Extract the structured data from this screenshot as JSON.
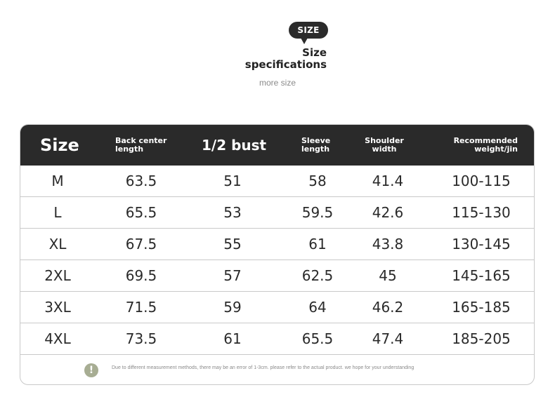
{
  "heading": {
    "badge": "SIZE",
    "title_line1": "Size",
    "title_line2": "specifications",
    "subtitle": "more size"
  },
  "table": {
    "headers": {
      "size": "Size",
      "back_line1": "Back center",
      "back_line2": "length",
      "bust": "1/2 bust",
      "sleeve_line1": "Sleeve",
      "sleeve_line2": "length",
      "shoulder_line1": "Shoulder",
      "shoulder_line2": "width",
      "weight_line1": "Recommended",
      "weight_line2": "weight/jin"
    },
    "rows": [
      [
        "M",
        "63.5",
        "51",
        "58",
        "41.4",
        "100-115"
      ],
      [
        "L",
        "65.5",
        "53",
        "59.5",
        "42.6",
        "115-130"
      ],
      [
        "XL",
        "67.5",
        "55",
        "61",
        "43.8",
        "130-145"
      ],
      [
        "2XL",
        "69.5",
        "57",
        "62.5",
        "45",
        "145-165"
      ],
      [
        "3XL",
        "71.5",
        "59",
        "64",
        "46.2",
        "165-185"
      ],
      [
        "4XL",
        "73.5",
        "61",
        "65.5",
        "47.4",
        "185-205"
      ]
    ]
  },
  "note": {
    "icon": "exclamation-icon",
    "icon_glyph": "!",
    "text": "Due to different measurement methods, there may be an error of 1-3cm. please refer to the actual product. we hope for your understanding"
  },
  "colors": {
    "header_bg": "#2a2a2a",
    "border": "#c9c9c9",
    "icon": "#a7ad93"
  }
}
